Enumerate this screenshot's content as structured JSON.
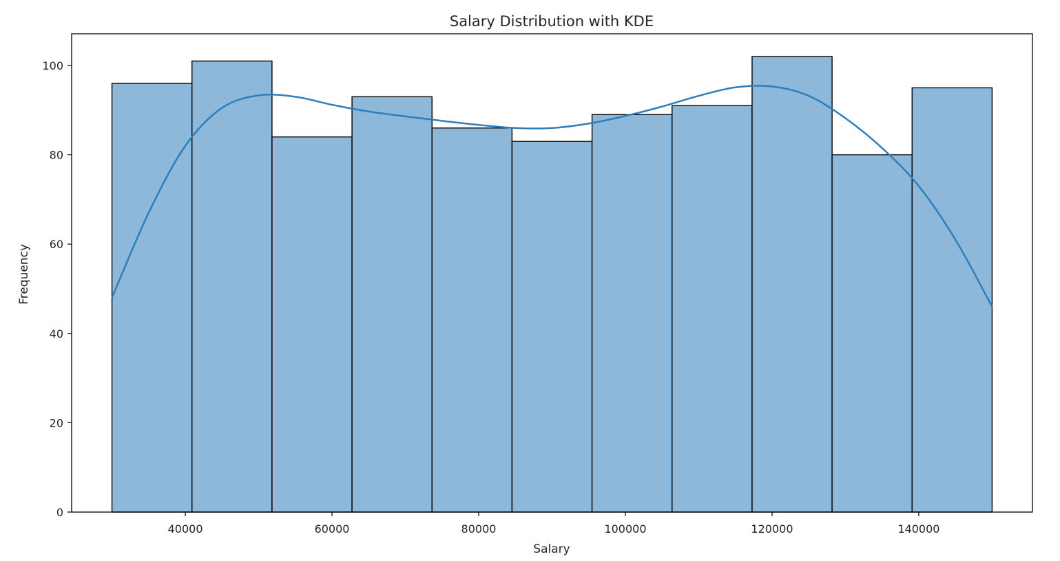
{
  "chart_data": {
    "type": "bar",
    "title": "Salary Distribution with KDE",
    "xlabel": "Salary",
    "ylabel": "Frequency",
    "bin_edges": [
      30000,
      40909,
      51818,
      62727,
      73636,
      84545,
      95455,
      106364,
      117273,
      128182,
      139091,
      150000
    ],
    "values": [
      96,
      101,
      84,
      93,
      86,
      83,
      89,
      91,
      102,
      80,
      95
    ],
    "x_ticks": [
      40000,
      60000,
      80000,
      100000,
      120000,
      140000
    ],
    "x_tick_labels": [
      "40000",
      "60000",
      "80000",
      "100000",
      "120000",
      "140000"
    ],
    "y_ticks": [
      0,
      20,
      40,
      60,
      80,
      100
    ],
    "y_tick_labels": [
      "0",
      "20",
      "40",
      "60",
      "80",
      "100"
    ],
    "xlim": [
      24500,
      155500
    ],
    "ylim": [
      0,
      107.1
    ],
    "grid": false,
    "kde": {
      "x": [
        30000,
        35000,
        40000,
        45000,
        50000,
        55000,
        60000,
        65000,
        70000,
        75000,
        80000,
        85000,
        90000,
        95000,
        100000,
        105000,
        110000,
        115000,
        120000,
        125000,
        130000,
        135000,
        140000,
        145000,
        150000
      ],
      "y": [
        48,
        67,
        82,
        90.5,
        93.3,
        93,
        91.2,
        89.7,
        88.6,
        87.6,
        86.7,
        86,
        86,
        87,
        88.7,
        90.8,
        93.2,
        95.1,
        95.3,
        93.2,
        88.2,
        81.5,
        73,
        61,
        46
      ]
    },
    "colors": {
      "bar_fill": "#8db8da",
      "bar_edge": "#000000",
      "kde_line": "#2e7ebc",
      "axis": "#000000",
      "text": "#262626"
    }
  }
}
